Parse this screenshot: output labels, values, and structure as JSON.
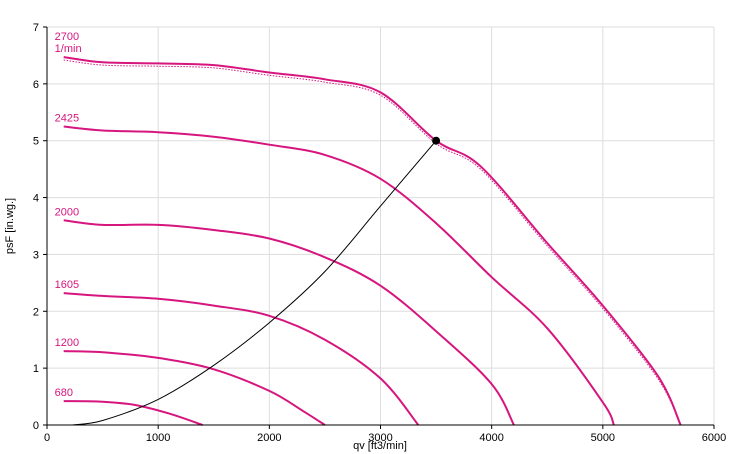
{
  "chart_data": {
    "type": "line",
    "xlabel": "qv [ft3/min]",
    "ylabel": "psF [in.wg.]",
    "xlim": [
      0,
      6000
    ],
    "ylim": [
      0,
      7
    ],
    "x_ticks": [
      "0",
      "1000",
      "2000",
      "3000",
      "4000",
      "5000",
      "6000"
    ],
    "y_ticks": [
      "0",
      "1",
      "2",
      "3",
      "4",
      "5",
      "6",
      "7"
    ],
    "grid": true,
    "colors": {
      "curve": "#d6157e",
      "system": "#000000",
      "grid": "#dddddd",
      "axis": "#000000"
    },
    "series": [
      {
        "name": "2700",
        "unit": "1/min",
        "dotted_offset": true,
        "points": [
          [
            150,
            6.47
          ],
          [
            500,
            6.38
          ],
          [
            1000,
            6.36
          ],
          [
            1500,
            6.33
          ],
          [
            2000,
            6.2
          ],
          [
            2500,
            6.08
          ],
          [
            3000,
            5.85
          ],
          [
            3500,
            5.0
          ],
          [
            3900,
            4.55
          ],
          [
            4500,
            3.2
          ],
          [
            5000,
            2.1
          ],
          [
            5500,
            0.85
          ],
          [
            5700,
            0
          ]
        ]
      },
      {
        "name": "2425",
        "points": [
          [
            150,
            5.25
          ],
          [
            500,
            5.18
          ],
          [
            1000,
            5.15
          ],
          [
            1500,
            5.07
          ],
          [
            2000,
            4.93
          ],
          [
            2500,
            4.75
          ],
          [
            3000,
            4.33
          ],
          [
            3500,
            3.55
          ],
          [
            4000,
            2.6
          ],
          [
            4500,
            1.7
          ],
          [
            5000,
            0.4
          ],
          [
            5100,
            0
          ]
        ]
      },
      {
        "name": "2000",
        "points": [
          [
            150,
            3.6
          ],
          [
            500,
            3.52
          ],
          [
            1000,
            3.52
          ],
          [
            1500,
            3.43
          ],
          [
            2000,
            3.28
          ],
          [
            2500,
            2.95
          ],
          [
            3000,
            2.45
          ],
          [
            3500,
            1.65
          ],
          [
            4000,
            0.72
          ],
          [
            4200,
            0
          ]
        ]
      },
      {
        "name": "1605",
        "points": [
          [
            150,
            2.32
          ],
          [
            500,
            2.27
          ],
          [
            1000,
            2.22
          ],
          [
            1500,
            2.1
          ],
          [
            2000,
            1.92
          ],
          [
            2500,
            1.5
          ],
          [
            3000,
            0.82
          ],
          [
            3340,
            0
          ]
        ]
      },
      {
        "name": "1200",
        "points": [
          [
            150,
            1.3
          ],
          [
            500,
            1.28
          ],
          [
            1000,
            1.18
          ],
          [
            1500,
            0.98
          ],
          [
            2000,
            0.6
          ],
          [
            2300,
            0.25
          ],
          [
            2500,
            0
          ]
        ]
      },
      {
        "name": "680",
        "points": [
          [
            150,
            0.42
          ],
          [
            500,
            0.41
          ],
          [
            800,
            0.35
          ],
          [
            1100,
            0.2
          ],
          [
            1400,
            0
          ]
        ]
      }
    ],
    "system_curve": {
      "points": [
        [
          230,
          0
        ],
        [
          500,
          0.08
        ],
        [
          1000,
          0.45
        ],
        [
          1500,
          1.05
        ],
        [
          2000,
          1.8
        ],
        [
          2500,
          2.7
        ],
        [
          3000,
          3.85
        ],
        [
          3500,
          5.0
        ]
      ]
    },
    "operating_point": {
      "x": 3500,
      "y": 5.0
    }
  }
}
